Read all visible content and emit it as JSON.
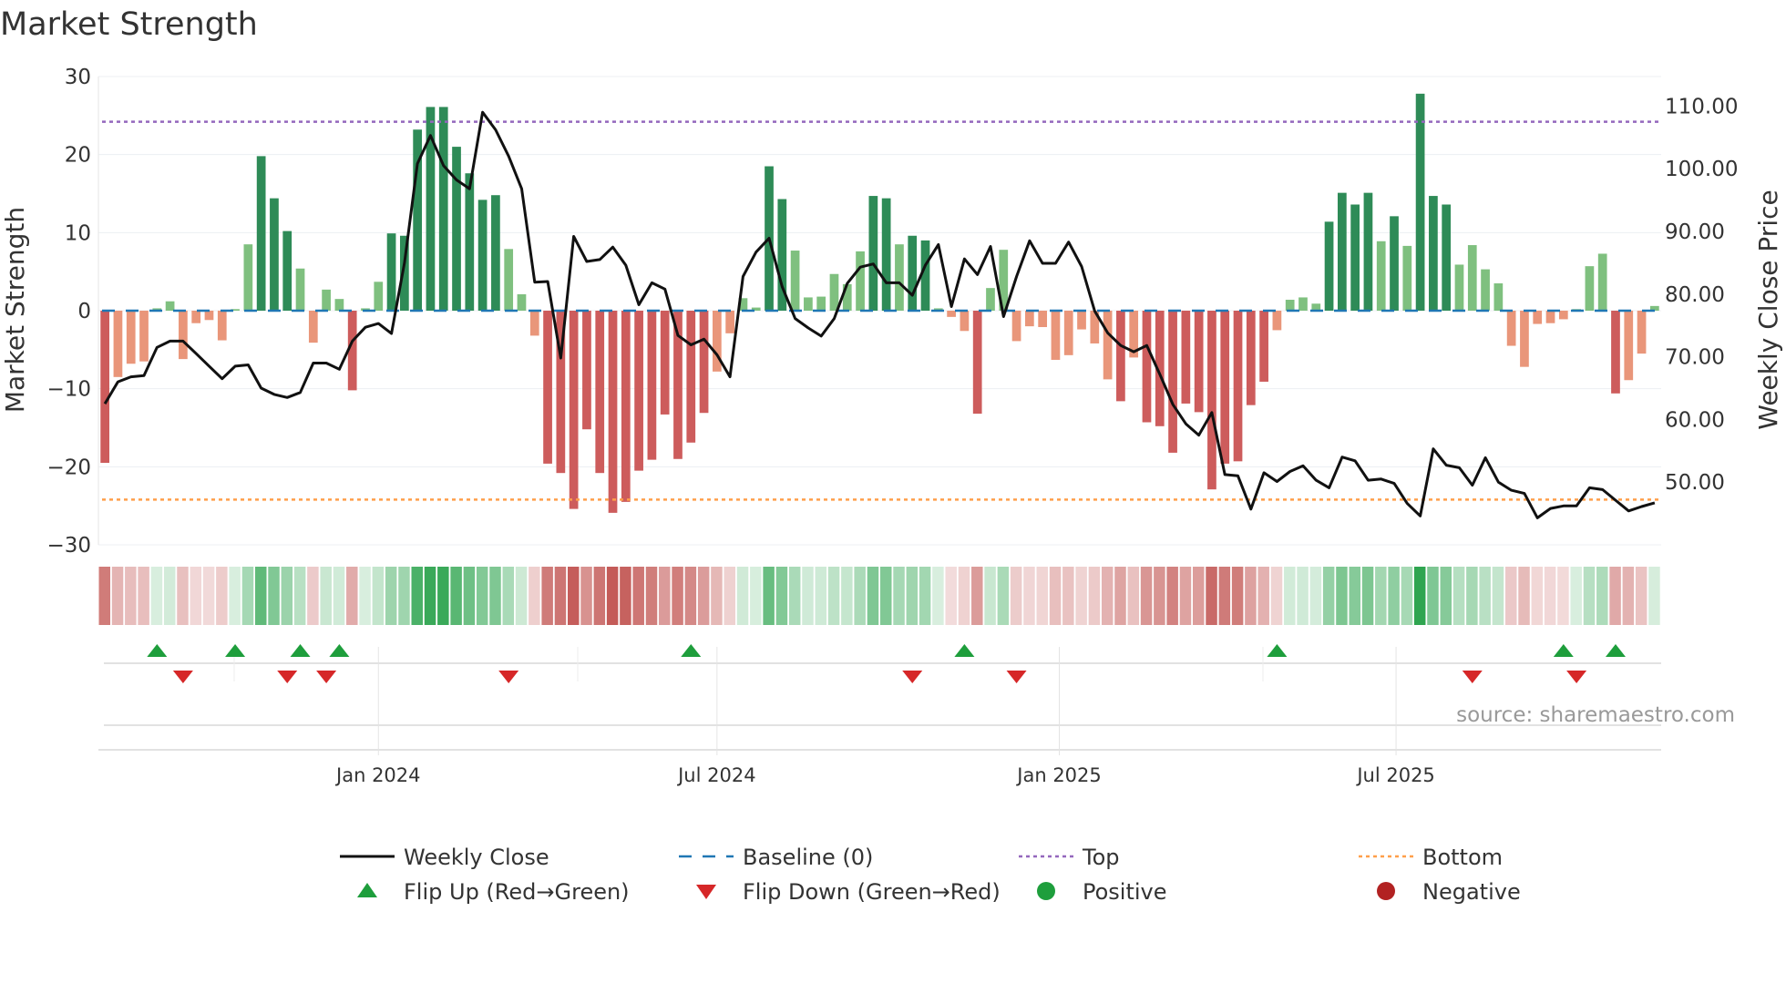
{
  "chart_data": {
    "type": "bar",
    "title": "Market Strength",
    "ylabel_left": "Market Strength",
    "ylabel_right": "Weekly Close Price",
    "ylim_left": [
      -30,
      30
    ],
    "ylim_right": [
      40,
      114.7
    ],
    "yticks_left": [
      30,
      20,
      10,
      0,
      -10,
      -20,
      -30
    ],
    "ytick_labels_left": [
      "30",
      "20",
      "10",
      "0",
      "−10",
      "−20",
      "−30"
    ],
    "yticks_right": [
      110,
      100,
      90,
      80,
      70,
      60,
      50
    ],
    "ytick_labels_right": [
      "110.00",
      "100.00",
      "90.00",
      "80.00",
      "70.00",
      "60.00",
      "50.00"
    ],
    "x_start": "2023-08-07",
    "week_count": 120,
    "date_ticks": [
      {
        "date": "2024-01-01",
        "label": "Jan 2024"
      },
      {
        "date": "2024-07-01",
        "label": "Jul 2024"
      },
      {
        "date": "2025-01-01",
        "label": "Jan 2025"
      },
      {
        "date": "2025-07-01",
        "label": "Jul 2025"
      }
    ],
    "strength": [
      -19.5,
      -8.5,
      -6.8,
      -6.5,
      0.3,
      1.2,
      -6.2,
      -1.6,
      -1.2,
      -3.8,
      0.2,
      8.5,
      19.8,
      14.4,
      10.2,
      5.4,
      -4.1,
      2.7,
      1.5,
      -10.2,
      0.3,
      3.7,
      9.9,
      9.6,
      23.2,
      26.1,
      26.1,
      21,
      17.6,
      14.2,
      14.8,
      7.9,
      2.1,
      -3.2,
      -19.6,
      -20.8,
      -25.4,
      -15.2,
      -20.8,
      -25.9,
      -24.5,
      -20.5,
      -19.1,
      -13.3,
      -19,
      -16.9,
      -13.1,
      -7.8,
      -2.9,
      1.6,
      0.4,
      18.5,
      14.3,
      7.7,
      1.7,
      1.8,
      4.7,
      3.4,
      7.6,
      14.7,
      14.4,
      8.5,
      9.6,
      9,
      0.3,
      -0.8,
      -2.6,
      -13.2,
      2.9,
      7.8,
      -3.9,
      -2,
      -2.1,
      -6.3,
      -5.7,
      -2.4,
      -4.2,
      -8.8,
      -11.6,
      -6,
      -14.3,
      -14.8,
      -18.2,
      -11.9,
      -13,
      -22.9,
      -19.6,
      -19.3,
      -12.1,
      -9.1,
      -2.5,
      1.4,
      1.7,
      0.9,
      11.4,
      15.1,
      13.6,
      15.1,
      8.9,
      12.1,
      8.3,
      27.8,
      14.7,
      13.6,
      5.9,
      8.4,
      5.3,
      3.5,
      -4.5,
      -7.2,
      -1.7,
      -1.6,
      -1.1,
      0.2,
      5.7,
      7.3,
      -10.6,
      -8.9,
      -5.5,
      0.6
    ],
    "weekly_close": [
      62.5,
      66,
      66.8,
      67,
      71.5,
      72.5,
      72.5,
      70.5,
      68.5,
      66.5,
      68.5,
      68.7,
      65,
      64,
      63.5,
      64.3,
      69,
      69,
      68,
      72.5,
      74.7,
      75.3,
      73.7,
      85,
      100.8,
      105.3,
      100.5,
      98.2,
      96.8,
      109,
      106.2,
      102,
      96.8,
      81.9,
      82,
      69.8,
      89.2,
      85.2,
      85.5,
      87.5,
      84.6,
      78.3,
      81.8,
      80.8,
      73.4,
      71.9,
      72.8,
      70.3,
      66.8,
      82.8,
      86.7,
      88.9,
      81.2,
      76.1,
      74.6,
      73.3,
      76.1,
      81.7,
      84.3,
      84.8,
      81.8,
      81.8,
      79.8,
      84.6,
      87.9,
      78,
      85.6,
      83.1,
      87.6,
      76.4,
      82.8,
      88.5,
      84.9,
      84.9,
      88.3,
      84.4,
      77.3,
      73.8,
      71.8,
      70.8,
      71.8,
      67.2,
      62.4,
      59.3,
      57.5,
      61.1,
      51.2,
      51,
      45.7,
      51.5,
      50.1,
      51.7,
      52.6,
      50.3,
      49.1,
      54,
      53.4,
      50.3,
      50.5,
      49.8,
      46.6,
      44.6,
      55.3,
      52.7,
      52.3,
      49.5,
      53.9,
      50,
      48.7,
      48.2,
      44.3,
      45.8,
      46.2,
      46.2,
      49.1,
      48.8,
      47.1,
      45.4,
      46.1,
      46.7
    ],
    "top_line": 24.2,
    "bottom_line": -24.2,
    "flip_up": [
      "2023-09-04",
      "2023-10-16",
      "2023-11-20",
      "2023-12-11",
      "2024-06-17",
      "2024-11-11",
      "2025-04-28",
      "2025-09-29",
      "2025-10-27"
    ],
    "flip_down": [
      "2023-09-18",
      "2023-11-13",
      "2023-12-04",
      "2024-03-11",
      "2024-10-14",
      "2024-12-09",
      "2025-08-11",
      "2025-10-06"
    ],
    "legend": [
      {
        "label": "Weekly Close",
        "key": "close"
      },
      {
        "label": "Baseline (0)",
        "key": "baseline"
      },
      {
        "label": "Top",
        "key": "top"
      },
      {
        "label": "Bottom",
        "key": "bottom"
      },
      {
        "label": "Flip Up (Red→Green)",
        "key": "flip_up"
      },
      {
        "label": "Flip Down (Green→Red)",
        "key": "flip_down"
      },
      {
        "label": "Positive",
        "key": "positive"
      },
      {
        "label": "Negative",
        "key": "negative"
      }
    ],
    "source": "source: sharemaestro.com"
  },
  "colors": {
    "pos_strong": "#2e8b57",
    "pos_weak": "#7fc07f",
    "neg_strong": "#cd5c5c",
    "neg_weak": "#e9967a",
    "close_line": "#111111",
    "baseline": "#1f77b4",
    "top_line": "#9467bd",
    "bottom_line": "#ff9f4a",
    "flip_up": "#1e9e3c",
    "flip_down": "#d62728",
    "positive": "#1e9e3c",
    "negative": "#b22222"
  }
}
